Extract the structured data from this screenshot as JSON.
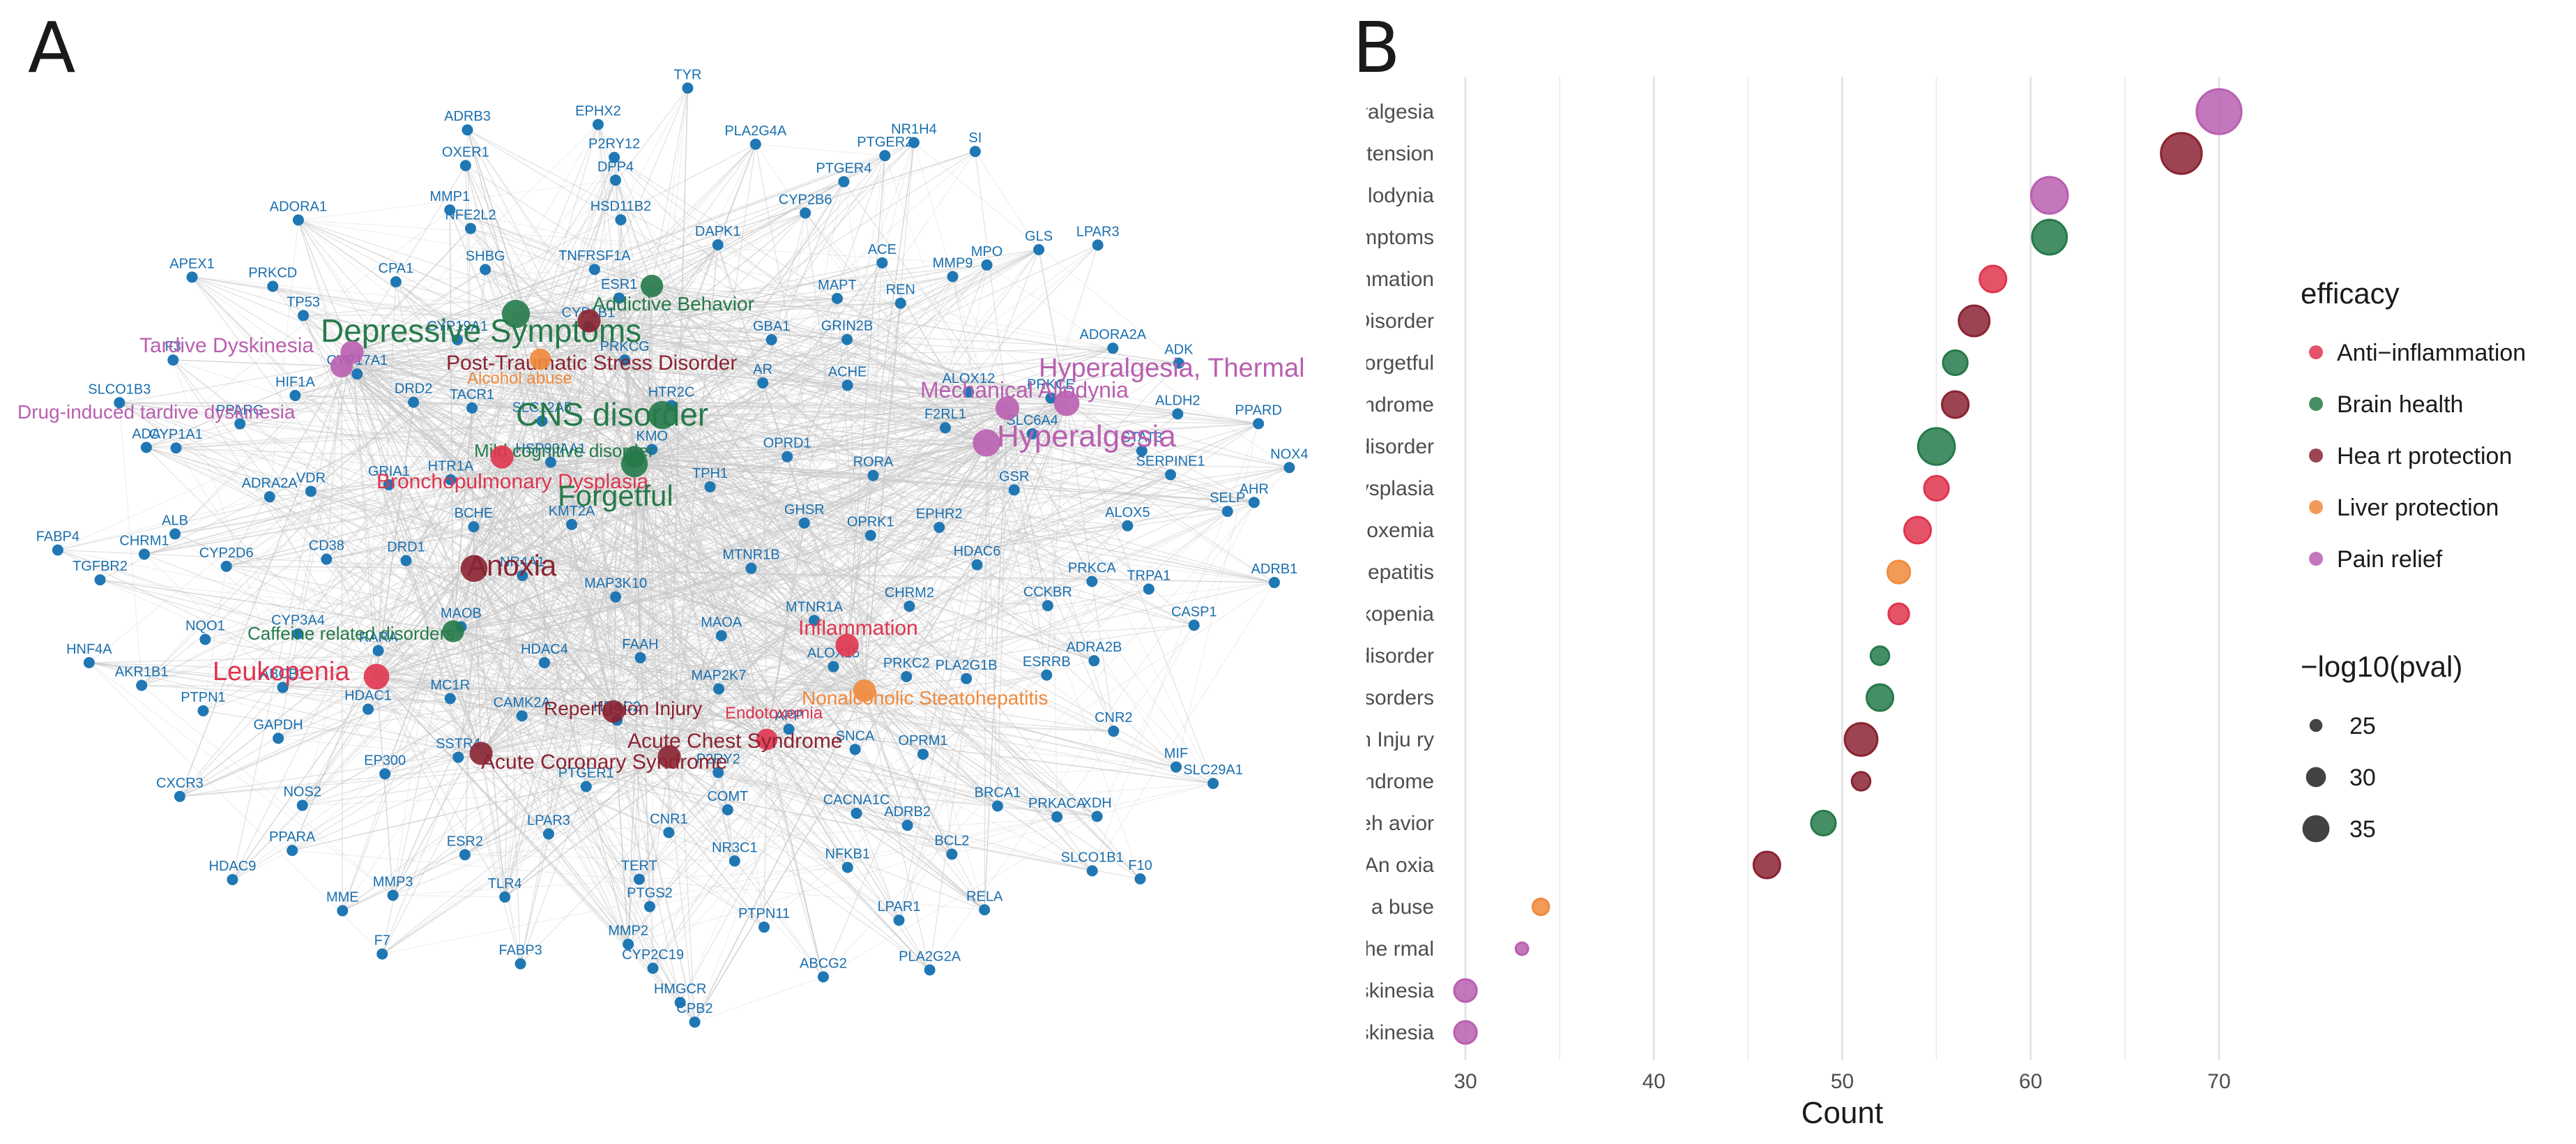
{
  "panels": {
    "a": "A",
    "b": "B"
  },
  "colors": {
    "gene": "#1f77b4",
    "Anti-inflammation": "#e0354f",
    "Brain health": "#267a4a",
    "Heart protection": "#8b2332",
    "Liver protection": "#f08a3c",
    "Pain relief": "#b95fb0",
    "edge": "#c8c8c8"
  },
  "network": {
    "genes": [
      "MTNR1B",
      "MAP3K10",
      "TPH1",
      "MAOA",
      "KMT2A",
      "GHSR",
      "FAAH",
      "KMO",
      "MTNR1A",
      "NR4A1",
      "OPRD1",
      "MAP2K7",
      "HSP90AA1",
      "OPRK1",
      "HDAC4",
      "HTR2C",
      "ALOX15",
      "BCHE",
      "RORA",
      "HDAC2",
      "SLC12A5",
      "CHRM2",
      "MAOB",
      "AR",
      "APP",
      "HTR1A",
      "EPHR2",
      "CAMK2A",
      "PRKCG",
      "PRKC2",
      "DRD1",
      "ACHE",
      "P2RY2",
      "TACR1",
      "HDAC6",
      "MC1R",
      "GBA1",
      "SNCA",
      "GRIA1",
      "F2RL1",
      "PTGER1",
      "CYP1B1",
      "PLA2G1B",
      "RARA",
      "GRIN2B",
      "COMT",
      "DRD2",
      "GSR",
      "SSTR4",
      "ESR1",
      "OPRM1",
      "CD38",
      "ALOX12",
      "CNR1",
      "CYP19A1",
      "CCKBR",
      "HDAC1",
      "MAPT",
      "CACNA1C",
      "VDR",
      "SLC6A4",
      "LPAR3",
      "TNFRSF1A",
      "ESRRB",
      "CYP3A4",
      "REN",
      "NR3C1",
      "CYP17A1",
      "PRKCA",
      "EP300",
      "DAPK1",
      "ADRB2",
      "ADRA2A",
      "PRKCE",
      "TERT",
      "SHBG",
      "ADRA2B",
      "ABCB1",
      "ACE",
      "NFKB1",
      "HIF1A",
      "ALOX5",
      "ESR2",
      "HSD11B2",
      "BRCA1",
      "CYP2D6",
      "MMP9",
      "PTGS2",
      "CPA1",
      "TRPA1",
      "GAPDH",
      "CYP2B6",
      "BCL2",
      "PPARG",
      "STAT3",
      "TLR4",
      "NFE2L2",
      "CNR2",
      "NQO1",
      "MPO",
      "PTPN11",
      "TP53",
      "SERPINE1",
      "NOS2",
      "DPP4",
      "PRKACA",
      "ALB",
      "ADORA2A",
      "MMP2",
      "MMP1",
      "CASP1",
      "PTPN1",
      "PTGER4",
      "LPAR1",
      "CYP1A1",
      "ALDH2",
      "MMP3",
      "P2RY12",
      "XDH",
      "CHRM1",
      "GLS",
      "CYP2C19",
      "PRKCD",
      "SELP",
      "PPARA",
      "PLA2G4A",
      "RELA",
      "ADA",
      "ADK",
      "FABP3",
      "OXER1",
      "MIF",
      "AKR1B1",
      "PTGER2",
      "ABCG2",
      "F3",
      "AHR",
      "MME",
      "EPHX2",
      "SLCO1B1",
      "TGFBR2",
      "LPAR3",
      "HMGCR",
      "ADORA1",
      "ADRB1",
      "CXCR3",
      "NR1H4",
      "PLA2G2A",
      "SLCO1B3",
      "PPARD",
      "F7",
      "ADRB3",
      "SLC29A1",
      "HNF4A",
      "SI",
      "CPB2",
      "APEX1",
      "NOX4",
      "HDAC9",
      "TYR",
      "F10",
      "FABP4"
    ],
    "diseases": [
      "Depressive Symptoms",
      "Tardive Dyskinesia",
      "Addictive Behavior",
      "Post-Traumatic Stress Disorder",
      "Alcohol abuse",
      "Hyperalgesia, Thermal",
      "Drug-induced tardive dyskinesia",
      "CNS disorder",
      "Mechanical Allodynia",
      "Mild cognitive disorder",
      "Hyperalgesia",
      "Bronchopulmonary Dysplasia",
      "Forgetful",
      "Anoxia",
      "Caffeine related disorders",
      "Inflammation",
      "Leukopenia",
      "Nonalcoholic Steatohepatitis",
      "Reperfusion Injury",
      "Endotoxemia",
      "Acute Chest Syndrome",
      "Acute Coronary Syndrome"
    ],
    "disease_efficacy": {
      "Depressive Symptoms": "Brain health",
      "Tardive Dyskinesia": "Pain relief",
      "Addictive Behavior": "Brain health",
      "Post-Traumatic Stress Disorder": "Heart protection",
      "Alcohol abuse": "Liver protection",
      "Hyperalgesia, Thermal": "Pain relief",
      "Drug-induced tardive dyskinesia": "Pain relief",
      "CNS disorder": "Brain health",
      "Mechanical Allodynia": "Pain relief",
      "Mild cognitive disorder": "Brain health",
      "Hyperalgesia": "Pain relief",
      "Bronchopulmonary Dysplasia": "Anti-inflammation",
      "Forgetful": "Brain health",
      "Anoxia": "Heart protection",
      "Caffeine related disorders": "Brain health",
      "Inflammation": "Anti-inflammation",
      "Leukopenia": "Anti-inflammation",
      "Nonalcoholic Steatohepatitis": "Liver protection",
      "Reperfusion Injury": "Heart protection",
      "Endotoxemia": "Anti-inflammation",
      "Acute Chest Syndrome": "Heart protection",
      "Acute Coronary Syndrome": "Heart protection"
    }
  },
  "chart_data": {
    "type": "scatter",
    "xlabel": "Count",
    "ylabel": "Disease",
    "xlim": [
      29,
      71
    ],
    "xticks": [
      30,
      40,
      50,
      60,
      70
    ],
    "grid": true,
    "legend_placement": "right",
    "color_legend_title": "efficacy",
    "size_legend_title": "−log10(pval)",
    "size_legend": [
      25,
      30,
      35
    ],
    "categories": [
      "Hyperalgesia",
      "Essential Hype rtension",
      "Mechanical Allodynia",
      "Depressive Symptoms",
      "Inflammation",
      "Post−Traumatic Stress Disorder",
      "Forgetful",
      "Acute Corona ry Syndrome",
      "CNS disorder",
      "Bronchopulmona ry Dysplasia",
      "Endot oxemia",
      "Nonalcoholic Steatohepatitis",
      "Leukopenia",
      "Mild cogniti ve disorder",
      "Caffeine related disorders",
      "Reperfusion Inju ry",
      "Acute Chest Syndrome",
      "Addicti ve Beh avior",
      "An oxia",
      "Alcohol a buse",
      "Hyperalgesia, The rmal",
      "Tardive Dyskinesia",
      "Drug−induced tardi ve dyskinesia"
    ],
    "series": [
      {
        "name": "Anti−inflammation",
        "points": [
          {
            "y": "Inflammation",
            "x": 58,
            "size": 29
          },
          {
            "y": "Bronchopulmona ry Dysplasia",
            "x": 55,
            "size": 28
          },
          {
            "y": "Endot oxemia",
            "x": 54,
            "size": 29
          },
          {
            "y": "Leukopenia",
            "x": 53,
            "size": 26
          }
        ]
      },
      {
        "name": "Brain health",
        "points": [
          {
            "y": "Depressive Symptoms",
            "x": 61,
            "size": 33
          },
          {
            "y": "Forgetful",
            "x": 56,
            "size": 28
          },
          {
            "y": "CNS disorder",
            "x": 55,
            "size": 34
          },
          {
            "y": "Mild cogniti ve disorder",
            "x": 52,
            "size": 25
          },
          {
            "y": "Caffeine related disorders",
            "x": 52,
            "size": 29
          },
          {
            "y": "Addicti ve Beh avior",
            "x": 49,
            "size": 28
          }
        ]
      },
      {
        "name": "Hea rt protection",
        "points": [
          {
            "y": "Essential Hype rtension",
            "x": 68,
            "size": 36
          },
          {
            "y": "Post−Traumatic Stress Disorder",
            "x": 57,
            "size": 31
          },
          {
            "y": "Acute Corona ry Syndrome",
            "x": 56,
            "size": 29
          },
          {
            "y": "Reperfusion Inju ry",
            "x": 51,
            "size": 32
          },
          {
            "y": "Acute Chest Syndrome",
            "x": 51,
            "size": 25
          },
          {
            "y": "An oxia",
            "x": 46,
            "size": 29
          }
        ]
      },
      {
        "name": "Liver protection",
        "points": [
          {
            "y": "Nonalcoholic Steatohepatitis",
            "x": 53,
            "size": 27
          },
          {
            "y": "Alcohol a buse",
            "x": 34,
            "size": 24
          }
        ]
      },
      {
        "name": "Pain relief",
        "points": [
          {
            "y": "Hyperalgesia",
            "x": 70,
            "size": 38
          },
          {
            "y": "Mechanical Allodynia",
            "x": 61,
            "size": 34
          },
          {
            "y": "Hyperalgesia, The rmal",
            "x": 33,
            "size": 22
          },
          {
            "y": "Tardive Dyskinesia",
            "x": 30,
            "size": 27
          },
          {
            "y": "Drug−induced tardi ve dyskinesia",
            "x": 30,
            "size": 27
          }
        ]
      }
    ]
  }
}
